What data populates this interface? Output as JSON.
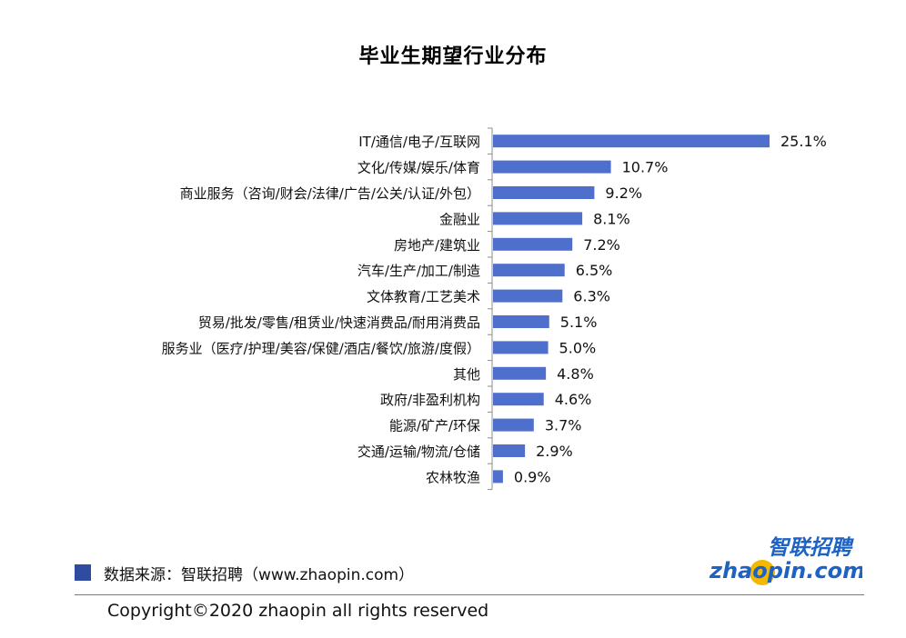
{
  "title": "毕业生期望行业分布",
  "source": {
    "text": "数据来源：智联招聘（www.zhaopin.com）",
    "marker_color": "#2e4da0"
  },
  "copyright": "Copyright©2020 zhaopin all rights reserved",
  "logo": {
    "cn": "智联招聘",
    "en": "zhaopin.com",
    "dot_color": "#f5b800",
    "text_color": "#1e63c4"
  },
  "chart_data": {
    "type": "bar",
    "orientation": "horizontal",
    "title": "毕业生期望行业分布",
    "bar_color": "#4f6fcd",
    "value_suffix": "%",
    "xlim": [
      0,
      25.1
    ],
    "categories": [
      "IT/通信/电子/互联网",
      "文化/传媒/娱乐/体育",
      "商业服务（咨询/财会/法律/广告/公关/认证/外包）",
      "金融业",
      "房地产/建筑业",
      "汽车/生产/加工/制造",
      "文体教育/工艺美术",
      "贸易/批发/零售/租赁业/快速消费品/耐用消费品",
      "服务业（医疗/护理/美容/保健/酒店/餐饮/旅游/度假）",
      "其他",
      "政府/非盈利机构",
      "能源/矿产/环保",
      "交通/运输/物流/仓储",
      "农林牧渔"
    ],
    "values": [
      25.1,
      10.7,
      9.2,
      8.1,
      7.2,
      6.5,
      6.3,
      5.1,
      5.0,
      4.8,
      4.6,
      3.7,
      2.9,
      0.9
    ],
    "labels": [
      "25.1%",
      "10.7%",
      "9.2%",
      "8.1%",
      "7.2%",
      "6.5%",
      "6.3%",
      "5.1%",
      "5.0%",
      "4.8%",
      "4.6%",
      "3.7%",
      "2.9%",
      "0.9%"
    ]
  }
}
